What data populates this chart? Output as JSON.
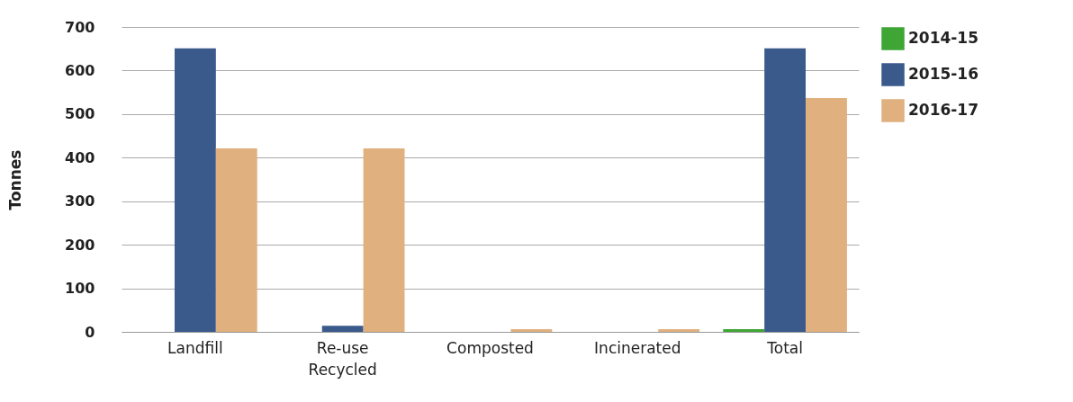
{
  "chart_data": {
    "type": "bar",
    "ylabel": "Tonnes",
    "categories": [
      "Landfill",
      "Re-use Recycled",
      "Composted",
      "Incinerated",
      "Total"
    ],
    "series": [
      {
        "name": "2014-15",
        "color": "#3fa535",
        "values": [
          0,
          0,
          0,
          0,
          6
        ]
      },
      {
        "name": "2015-16",
        "color": "#3a5a8c",
        "values": [
          651,
          14,
          0,
          0,
          651
        ]
      },
      {
        "name": "2016-17",
        "color": "#e0b07e",
        "values": [
          421,
          421,
          6,
          6,
          537
        ]
      }
    ],
    "ylim": [
      0,
      700
    ],
    "yticks": [
      0,
      100,
      200,
      300,
      400,
      500,
      600,
      700
    ],
    "grid": "y",
    "legend": "right"
  }
}
